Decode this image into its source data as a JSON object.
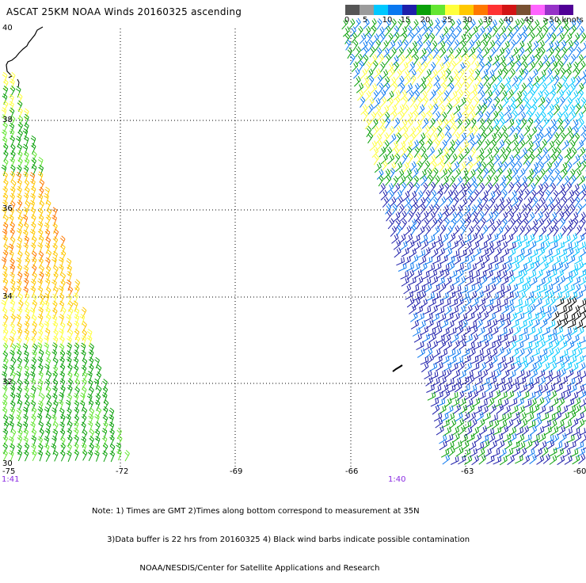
{
  "title": "ASCAT 25KM NOAA Winds 20160325 ascending",
  "scale": {
    "labels": [
      "0",
      "5",
      "10",
      "15",
      "20",
      "25",
      "30",
      "35",
      "40",
      "45",
      ">50 knots"
    ],
    "colors": [
      "#555555",
      "#9b9b9b",
      "#00c8ff",
      "#0a78f0",
      "#1e1eaa",
      "#0aa00a",
      "#64e632",
      "#ffff3c",
      "#ffc800",
      "#ff7800",
      "#ff3232",
      "#d21414",
      "#785032",
      "#ff64ff",
      "#9632c8",
      "#500096"
    ]
  },
  "axes": {
    "lat_labels": [
      "40",
      "38",
      "36",
      "34",
      "32",
      "30"
    ],
    "lon_labels": [
      "-75",
      "-72",
      "-69",
      "-66",
      "-63",
      "-60"
    ]
  },
  "pass_times": [
    "1:41",
    "1:40"
  ],
  "note": {
    "line1": "Note: 1) Times are GMT 2)Times along bottom correspond to measurement at 35N",
    "line2": "      3)Data buffer is 22 hrs from 20160325 4) Black wind barbs indicate possible contamination",
    "line3": "                   NOAA/NESDIS/Center for Satellite Applications and Research"
  }
}
